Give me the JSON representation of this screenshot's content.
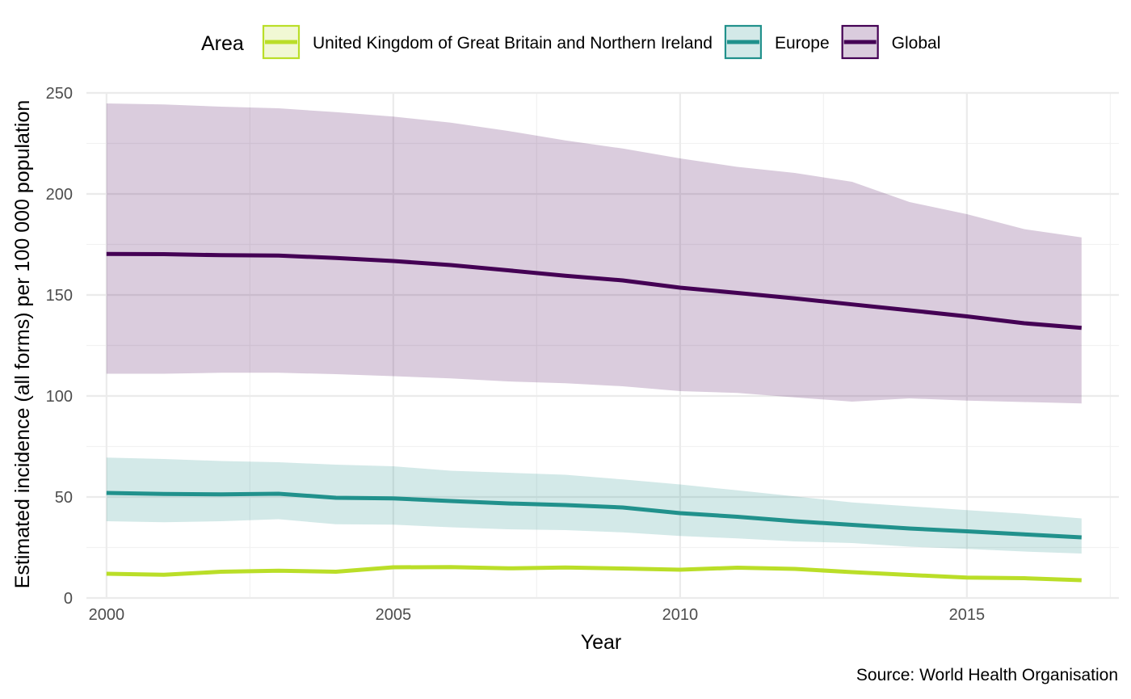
{
  "chart_data": {
    "type": "line",
    "xlabel": "Year",
    "ylabel": "Estimated incidence (all forms) per 100 000 population",
    "caption": "Source: World Health Organisation",
    "legend_title": "Area",
    "legend_position": "top",
    "grid": true,
    "xlim": [
      1999.65,
      2017.65
    ],
    "ylim": [
      0,
      250
    ],
    "x_ticks": [
      2000,
      2005,
      2010,
      2015
    ],
    "y_ticks": [
      0,
      50,
      100,
      150,
      200,
      250
    ],
    "x": [
      2000,
      2001,
      2002,
      2003,
      2004,
      2005,
      2006,
      2007,
      2008,
      2009,
      2010,
      2011,
      2012,
      2013,
      2014,
      2015,
      2016,
      2017
    ],
    "series": [
      {
        "name": "United Kingdom of Great Britain and Northern Ireland",
        "color": "#BADE28",
        "values": [
          12,
          11.5,
          13,
          13.5,
          13,
          15.2,
          15.3,
          14.7,
          15.1,
          14.6,
          14,
          15,
          14.4,
          12.8,
          11.4,
          10.1,
          9.8,
          8.8
        ],
        "lo": [
          12,
          11.5,
          13,
          13.5,
          13,
          15.2,
          15.3,
          14.7,
          15.1,
          14.6,
          14,
          15,
          14.4,
          12.8,
          11.4,
          10.1,
          9.8,
          8.8
        ],
        "hi": [
          12,
          11.5,
          13,
          13.5,
          13,
          15.2,
          15.3,
          14.7,
          15.1,
          14.6,
          14,
          15,
          14.4,
          12.8,
          11.4,
          10.1,
          9.8,
          8.8
        ]
      },
      {
        "name": "Europe",
        "color": "#21918C",
        "values": [
          52,
          51.5,
          51.3,
          51.6,
          49.6,
          49.3,
          48,
          46.8,
          46,
          44.8,
          42,
          40.2,
          38,
          36.2,
          34.4,
          33,
          31.5,
          30
        ],
        "lo": [
          38,
          37.5,
          38,
          39,
          36.5,
          36.3,
          35,
          34,
          33.6,
          32.5,
          30.7,
          29.5,
          28,
          27.2,
          25.4,
          24.3,
          23,
          22
        ],
        "hi": [
          69.5,
          68.8,
          67.8,
          67.2,
          66,
          65.2,
          63,
          62,
          61,
          58.7,
          56.2,
          53.3,
          50.3,
          47.3,
          45.4,
          43.5,
          41.7,
          39.4
        ]
      },
      {
        "name": "Global",
        "color": "#440154",
        "values": [
          170.3,
          170.2,
          169.7,
          169.5,
          168.3,
          166.8,
          164.8,
          162.2,
          159.5,
          157.2,
          153.6,
          151,
          148.3,
          145.3,
          142.4,
          139.4,
          136,
          133.7
        ],
        "lo": [
          111,
          111,
          111.5,
          111.5,
          110.8,
          109.8,
          108.7,
          107.2,
          106.3,
          104.8,
          102.4,
          101.5,
          99.3,
          97.2,
          98.8,
          97.7,
          97,
          96.3
        ],
        "hi": [
          244.8,
          244.3,
          243.2,
          242.4,
          240.5,
          238.3,
          235.3,
          231.2,
          226.5,
          222.5,
          217.6,
          213.4,
          210.4,
          206,
          196,
          190,
          182.6,
          178.5
        ]
      }
    ]
  }
}
